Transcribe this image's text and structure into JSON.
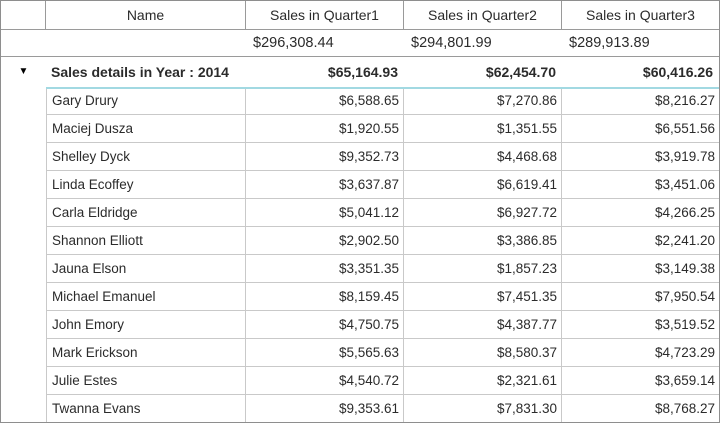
{
  "grid": {
    "columns": [
      "Name",
      "Sales in Quarter1",
      "Sales in Quarter2",
      "Sales in Quarter3"
    ],
    "summary_row": {
      "q1": "$296,308.44",
      "q2": "$294,801.99",
      "q3": "$289,913.89"
    },
    "group_row": {
      "expander_icon": "▼",
      "label": "Sales details in Year : 2014",
      "q1": "$65,164.93",
      "q2": "$62,454.70",
      "q3": "$60,416.26"
    },
    "rows": [
      {
        "name": "Gary Drury",
        "q1": "$6,588.65",
        "q2": "$7,270.86",
        "q3": "$8,216.27"
      },
      {
        "name": "Maciej Dusza",
        "q1": "$1,920.55",
        "q2": "$1,351.55",
        "q3": "$6,551.56"
      },
      {
        "name": "Shelley Dyck",
        "q1": "$9,352.73",
        "q2": "$4,468.68",
        "q3": "$3,919.78"
      },
      {
        "name": "Linda Ecoffey",
        "q1": "$3,637.87",
        "q2": "$6,619.41",
        "q3": "$3,451.06"
      },
      {
        "name": "Carla Eldridge",
        "q1": "$5,041.12",
        "q2": "$6,927.72",
        "q3": "$4,266.25"
      },
      {
        "name": "Shannon Elliott",
        "q1": "$2,902.50",
        "q2": "$3,386.85",
        "q3": "$2,241.20"
      },
      {
        "name": "Jauna Elson",
        "q1": "$3,351.35",
        "q2": "$1,857.23",
        "q3": "$3,149.38"
      },
      {
        "name": "Michael Emanuel",
        "q1": "$8,159.45",
        "q2": "$7,451.35",
        "q3": "$7,950.54"
      },
      {
        "name": "John Emory",
        "q1": "$4,750.75",
        "q2": "$4,387.77",
        "q3": "$3,519.52"
      },
      {
        "name": "Mark Erickson",
        "q1": "$5,565.63",
        "q2": "$8,580.37",
        "q3": "$4,723.29"
      },
      {
        "name": "Julie Estes",
        "q1": "$4,540.72",
        "q2": "$2,321.61",
        "q3": "$3,659.14"
      },
      {
        "name": "Twanna Evans",
        "q1": "$9,353.61",
        "q2": "$7,831.30",
        "q3": "$8,768.27"
      }
    ],
    "colors": {
      "outer_border": "#8e8e8e",
      "header_border": "#9a9a9a",
      "cell_border": "#c9c9c9",
      "detail_top_border": "#a2d9e2",
      "text": "#2b2b2b",
      "background": "#ffffff"
    }
  }
}
